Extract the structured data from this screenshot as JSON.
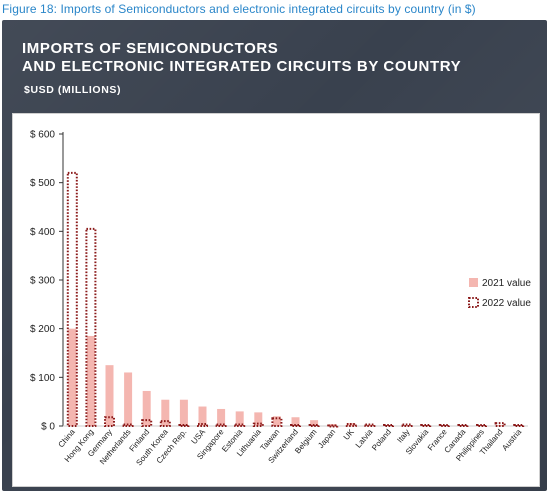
{
  "figure_caption": "Figure 18: Imports of Semiconductors and electronic integrated circuits by country (in $)",
  "colors": {
    "panel": "#39414e",
    "bar_2021": "#f4b6b0",
    "outline_2022": "#8b1a1a",
    "caption": "#2a86c9"
  },
  "chart_data": {
    "type": "bar",
    "title": "IMPORTS OF SEMICONDUCTORS AND ELECTRONIC INTEGRATED CIRCUITS BY COUNTRY",
    "title_lines": [
      "IMPORTS OF SEMICONDUCTORS",
      "AND ELECTRONIC INTEGRATED CIRCUITS BY COUNTRY"
    ],
    "subtitle": "$USD (MILLIONS)",
    "xlabel": "",
    "ylabel": "",
    "ylim": [
      0,
      600
    ],
    "yticks": [
      0,
      100,
      200,
      300,
      400,
      500,
      600
    ],
    "ytick_labels": [
      "$ 0",
      "$ 100",
      "$ 200",
      "$ 300",
      "$ 400",
      "$ 500",
      "$ 600"
    ],
    "grid": false,
    "legend_position": "right",
    "categories": [
      "China",
      "Hong Kong",
      "Germany",
      "Netherlands",
      "Finland",
      "South Korea",
      "Czech Rep.",
      "USA",
      "Singapore",
      "Estonia",
      "Lithuania",
      "Taiwan",
      "Switzerland",
      "Belgium",
      "Japan",
      "UK",
      "Latvia",
      "Poland",
      "Italy",
      "Slovakia",
      "France",
      "Canada",
      "Philippines",
      "Thailand",
      "Austria"
    ],
    "series": [
      {
        "name": "2021 value",
        "style": "filled",
        "values": [
          200,
          185,
          125,
          110,
          72,
          54,
          54,
          40,
          35,
          30,
          28,
          20,
          18,
          12,
          4,
          6,
          3,
          2,
          2,
          2,
          2,
          2,
          2,
          2,
          2
        ]
      },
      {
        "name": "2022 value",
        "style": "dotted-outline",
        "values": [
          520,
          405,
          18,
          3,
          12,
          10,
          2,
          4,
          3,
          3,
          5,
          16,
          2,
          2,
          1,
          4,
          3,
          2,
          3,
          2,
          2,
          2,
          2,
          6,
          2
        ]
      }
    ]
  }
}
